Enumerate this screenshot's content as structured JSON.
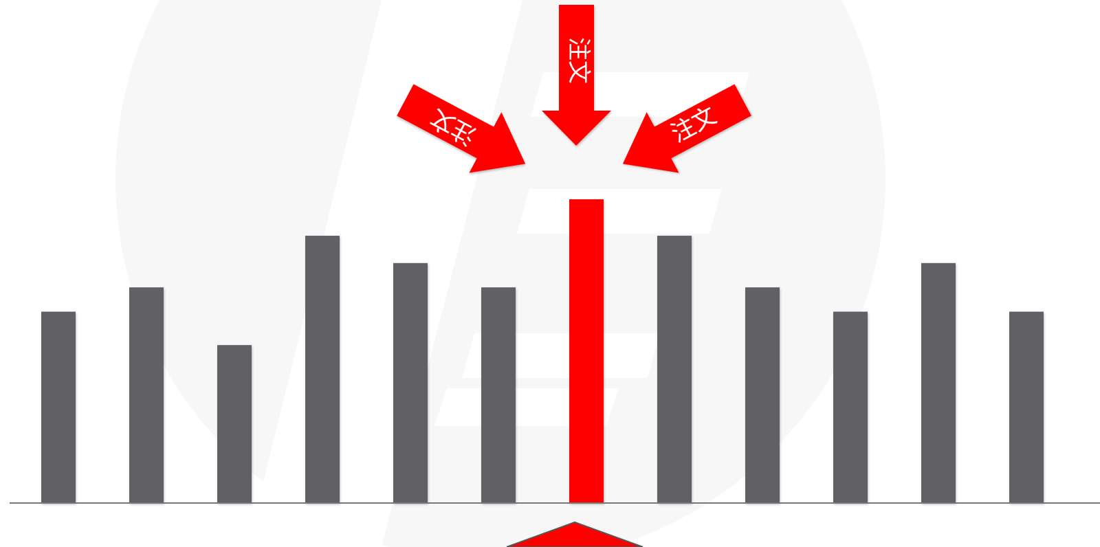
{
  "colors": {
    "background": "#ffffff",
    "watermark": "#f6f6f6",
    "bar": "#606065",
    "highlight": "#ff0000",
    "baseline": "#777777",
    "arrow_text": "#ffffff"
  },
  "chart_data": {
    "type": "bar",
    "title": "",
    "xlabel": "",
    "ylabel": "",
    "ylim": [
      0,
      10
    ],
    "values": [
      6.3,
      7.1,
      5.2,
      8.8,
      7.9,
      7.1,
      10,
      8.8,
      7.1,
      6.3,
      7.9,
      6.3
    ],
    "highlight_index": 6,
    "grid": false
  },
  "arrows": {
    "left_label": "注文",
    "top_label": "注文",
    "right_label": "注文"
  },
  "icons": {
    "left_arrow": "arrow-down-right-icon",
    "top_arrow": "arrow-down-icon",
    "right_arrow": "arrow-down-left-icon",
    "bottom_marker": "triangle-up-icon"
  }
}
